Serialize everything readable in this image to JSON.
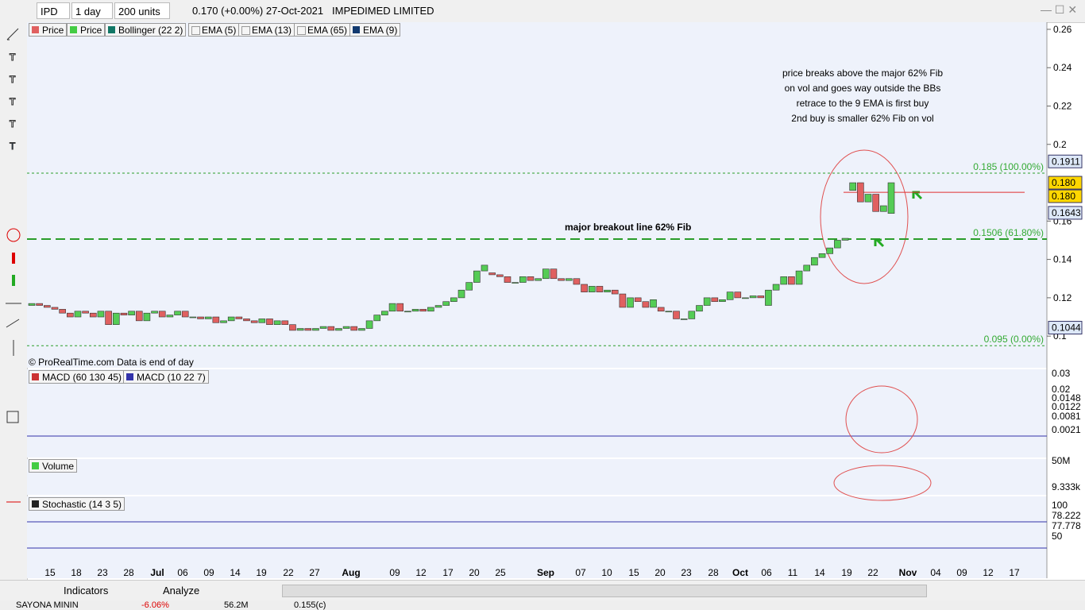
{
  "toolbar": {
    "symbol": "IPD",
    "period": "1 day",
    "units": "200 units",
    "quote": "0.170 (+0.00%) 27-Oct-2021",
    "company": "IMPEDIMED LIMITED"
  },
  "legend": [
    "Price",
    "Price",
    "Bollinger (22 2)",
    "EMA (5)",
    "EMA (13)",
    "EMA (65)",
    "EMA (9)"
  ],
  "price_chart": {
    "ylim": [
      0.0835,
      0.2637
    ],
    "yticks": [
      0.26,
      0.24,
      0.22,
      0.2,
      0.16,
      0.14,
      0.12,
      0.1
    ],
    "candles": [
      [
        0.116,
        0.117
      ],
      [
        0.117,
        0.116
      ],
      [
        0.116,
        0.115
      ],
      [
        0.115,
        0.114
      ],
      [
        0.114,
        0.112
      ],
      [
        0.112,
        0.11
      ],
      [
        0.11,
        0.113
      ],
      [
        0.113,
        0.112
      ],
      [
        0.112,
        0.11
      ],
      [
        0.11,
        0.113
      ],
      [
        0.113,
        0.106
      ],
      [
        0.106,
        0.112
      ],
      [
        0.112,
        0.111
      ],
      [
        0.111,
        0.113
      ],
      [
        0.113,
        0.108
      ],
      [
        0.108,
        0.112
      ],
      [
        0.112,
        0.113
      ],
      [
        0.113,
        0.11
      ],
      [
        0.11,
        0.111
      ],
      [
        0.111,
        0.113
      ],
      [
        0.113,
        0.11
      ],
      [
        0.11,
        0.11
      ],
      [
        0.11,
        0.109
      ],
      [
        0.109,
        0.11
      ],
      [
        0.11,
        0.107
      ],
      [
        0.107,
        0.108
      ],
      [
        0.108,
        0.11
      ],
      [
        0.11,
        0.109
      ],
      [
        0.109,
        0.108
      ],
      [
        0.108,
        0.107
      ],
      [
        0.107,
        0.109
      ],
      [
        0.109,
        0.106
      ],
      [
        0.106,
        0.108
      ],
      [
        0.108,
        0.106
      ],
      [
        0.106,
        0.103
      ],
      [
        0.103,
        0.104
      ],
      [
        0.104,
        0.103
      ],
      [
        0.103,
        0.104
      ],
      [
        0.104,
        0.105
      ],
      [
        0.105,
        0.103
      ],
      [
        0.103,
        0.104
      ],
      [
        0.104,
        0.105
      ],
      [
        0.105,
        0.103
      ],
      [
        0.103,
        0.104
      ],
      [
        0.104,
        0.108
      ],
      [
        0.108,
        0.111
      ],
      [
        0.111,
        0.113
      ],
      [
        0.113,
        0.117
      ],
      [
        0.117,
        0.113
      ],
      [
        0.113,
        0.113
      ],
      [
        0.113,
        0.114
      ],
      [
        0.114,
        0.113
      ],
      [
        0.113,
        0.115
      ],
      [
        0.115,
        0.116
      ],
      [
        0.116,
        0.118
      ],
      [
        0.118,
        0.12
      ],
      [
        0.12,
        0.124
      ],
      [
        0.124,
        0.128
      ],
      [
        0.128,
        0.134
      ],
      [
        0.134,
        0.137
      ],
      [
        0.133,
        0.132
      ],
      [
        0.132,
        0.131
      ],
      [
        0.131,
        0.128
      ],
      [
        0.128,
        0.128
      ],
      [
        0.128,
        0.131
      ],
      [
        0.131,
        0.129
      ],
      [
        0.129,
        0.13
      ],
      [
        0.13,
        0.135
      ],
      [
        0.135,
        0.13
      ],
      [
        0.13,
        0.129
      ],
      [
        0.129,
        0.13
      ],
      [
        0.13,
        0.127
      ],
      [
        0.127,
        0.123
      ],
      [
        0.123,
        0.126
      ],
      [
        0.126,
        0.123
      ],
      [
        0.123,
        0.124
      ],
      [
        0.124,
        0.122
      ],
      [
        0.122,
        0.115
      ],
      [
        0.115,
        0.12
      ],
      [
        0.12,
        0.118
      ],
      [
        0.118,
        0.115
      ],
      [
        0.115,
        0.119
      ],
      [
        0.115,
        0.113
      ],
      [
        0.113,
        0.113
      ],
      [
        0.113,
        0.109
      ],
      [
        0.109,
        0.109
      ],
      [
        0.109,
        0.113
      ],
      [
        0.113,
        0.116
      ],
      [
        0.116,
        0.12
      ],
      [
        0.12,
        0.118
      ],
      [
        0.118,
        0.119
      ],
      [
        0.119,
        0.123
      ],
      [
        0.123,
        0.12
      ],
      [
        0.12,
        0.12
      ],
      [
        0.12,
        0.121
      ],
      [
        0.121,
        0.12
      ],
      [
        0.116,
        0.124
      ],
      [
        0.124,
        0.127
      ],
      [
        0.127,
        0.131
      ],
      [
        0.131,
        0.127
      ],
      [
        0.127,
        0.134
      ],
      [
        0.134,
        0.137
      ],
      [
        0.137,
        0.141
      ],
      [
        0.141,
        0.143
      ],
      [
        0.143,
        0.146
      ],
      [
        0.146,
        0.15
      ],
      [
        0.15,
        0.151
      ],
      [
        0.176,
        0.18
      ],
      [
        0.18,
        0.17
      ],
      [
        0.17,
        0.174
      ],
      [
        0.174,
        0.165
      ],
      [
        0.165,
        0.168
      ],
      [
        0.164,
        0.18
      ]
    ],
    "fib_levels": [
      {
        "value": 0.185,
        "label": "0.185 (100.00%)"
      },
      {
        "value": 0.1506,
        "label": "0.1506 (61.80%)"
      },
      {
        "value": 0.095,
        "label": "0.095 (0.00%)"
      }
    ],
    "price_boxes": [
      {
        "value": 0.1911,
        "label": "0.1911"
      },
      {
        "value": 0.18,
        "label": "0.180"
      },
      {
        "value": 0.1643,
        "label": "0.1643"
      },
      {
        "value": 0.1044,
        "label": "0.1044"
      }
    ],
    "horizontal_line": 0.175,
    "note": [
      "price breaks above the major  62% Fib",
      "on vol and goes way outside the BBs",
      "retrace to the 9 EMA is first buy",
      "2nd buy is smaller 62% Fib on vol"
    ],
    "breakout_label": "major breakout line 62% Fib",
    "copyright": "© ProRealTime.com  Data is end of day"
  },
  "x_labels": [
    "15",
    "18",
    "23",
    "28",
    "Jul",
    "06",
    "09",
    "14",
    "19",
    "22",
    "27",
    "Aug",
    "09",
    "12",
    "17",
    "20",
    "25",
    "Sep",
    "07",
    "10",
    "15",
    "20",
    "23",
    "28",
    "Oct",
    "06",
    "11",
    "14",
    "19",
    "22",
    "Nov",
    "04",
    "09",
    "12",
    "17"
  ],
  "macd": {
    "legend": [
      "MACD (60 130 45)",
      "MACD (10 22 7)"
    ],
    "axis": [
      "0.03",
      "0.02",
      "0.0148",
      "0.0122",
      "0.0081",
      "0.0021"
    ]
  },
  "volume": {
    "legend": "Volume",
    "axis": [
      "50M",
      "9.333k"
    ]
  },
  "stochastic": {
    "legend": "Stochastic (14 3 5)",
    "axis": [
      "100",
      "78.222",
      "77.778",
      "50"
    ]
  },
  "bottom_toolbar": {
    "indicators": "Indicators",
    "analyze": "Analyze"
  },
  "status_bar": {
    "name": "SAYONA MININ",
    "change": "-6.06%",
    "volume": "56.2M",
    "price": "0.155(c)"
  }
}
